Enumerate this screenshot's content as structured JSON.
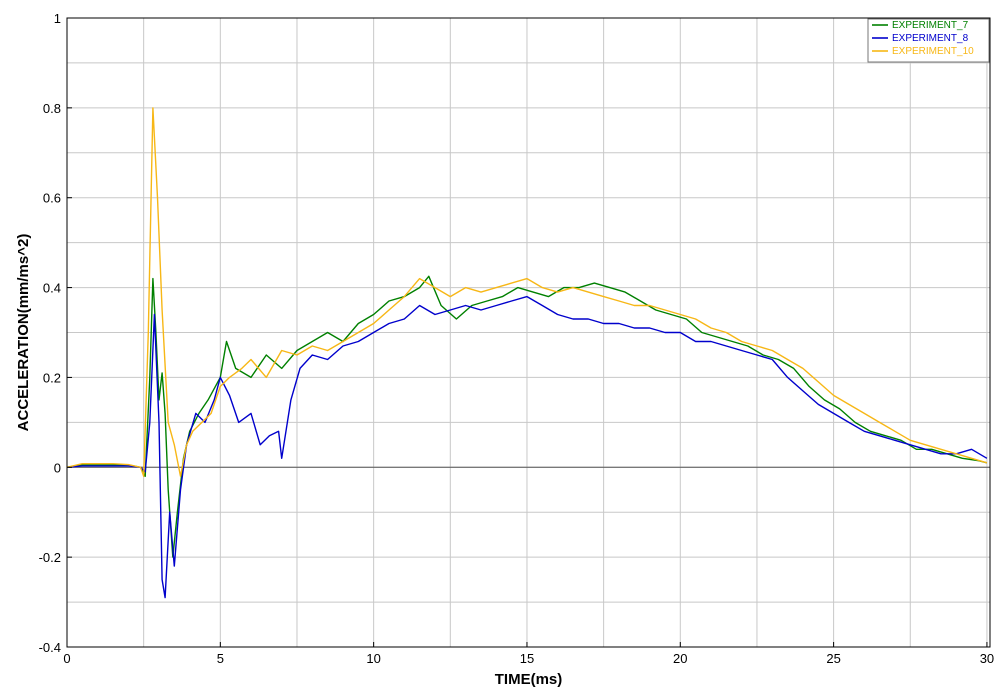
{
  "chart_data": {
    "type": "line",
    "title": "",
    "xlabel": "TIME(ms)",
    "ylabel": "ACCELERATION(mm/ms^2)",
    "xlim": [
      0,
      30.1
    ],
    "ylim": [
      -0.4,
      1.0
    ],
    "xticks": [
      "0",
      "5",
      "10",
      "15",
      "20",
      "25",
      "30"
    ],
    "yticks": [
      "-0.4",
      "-0.2",
      "0",
      "0.2",
      "0.4",
      "0.6",
      "0.8",
      "1"
    ],
    "grid": true,
    "legend_position": "top-right",
    "zero_line": true,
    "series": [
      {
        "name": "EXPERIMENT_7",
        "color": "#008000",
        "x": [
          0,
          0.5,
          1.0,
          1.5,
          2.0,
          2.4,
          2.55,
          2.7,
          2.8,
          2.9,
          3.0,
          3.1,
          3.2,
          3.3,
          3.45,
          3.6,
          3.8,
          4.0,
          4.3,
          4.6,
          5.0,
          5.2,
          5.5,
          6.0,
          6.5,
          7.0,
          7.5,
          8.0,
          8.5,
          9.0,
          9.5,
          10.0,
          10.5,
          11.0,
          11.5,
          11.8,
          12.2,
          12.7,
          13.2,
          13.7,
          14.2,
          14.7,
          15.2,
          15.7,
          16.2,
          16.7,
          17.2,
          17.7,
          18.2,
          18.7,
          19.2,
          19.7,
          20.2,
          20.7,
          21.2,
          21.7,
          22.2,
          22.7,
          23.2,
          23.7,
          24.2,
          24.7,
          25.2,
          25.7,
          26.2,
          26.7,
          27.2,
          27.7,
          28.2,
          28.7,
          29.2,
          29.7,
          30.0
        ],
        "y": [
          0,
          0.005,
          0.005,
          0.005,
          0.005,
          0.0,
          -0.02,
          0.2,
          0.42,
          0.3,
          0.15,
          0.21,
          0.12,
          -0.05,
          -0.2,
          -0.1,
          0.02,
          0.08,
          0.12,
          0.15,
          0.2,
          0.28,
          0.22,
          0.2,
          0.25,
          0.22,
          0.26,
          0.28,
          0.3,
          0.28,
          0.32,
          0.34,
          0.37,
          0.38,
          0.4,
          0.425,
          0.36,
          0.33,
          0.36,
          0.37,
          0.38,
          0.4,
          0.39,
          0.38,
          0.4,
          0.4,
          0.41,
          0.4,
          0.39,
          0.37,
          0.35,
          0.34,
          0.33,
          0.3,
          0.29,
          0.28,
          0.27,
          0.25,
          0.24,
          0.22,
          0.18,
          0.15,
          0.13,
          0.1,
          0.08,
          0.07,
          0.06,
          0.04,
          0.04,
          0.03,
          0.02,
          0.015,
          0.01
        ]
      },
      {
        "name": "EXPERIMENT_8",
        "color": "#0000cc",
        "x": [
          0,
          0.5,
          1.0,
          1.5,
          2.0,
          2.4,
          2.55,
          2.7,
          2.85,
          3.0,
          3.1,
          3.2,
          3.35,
          3.5,
          3.7,
          3.9,
          4.2,
          4.5,
          4.8,
          5.0,
          5.3,
          5.6,
          6.0,
          6.3,
          6.6,
          6.9,
          7.0,
          7.3,
          7.6,
          8.0,
          8.5,
          9.0,
          9.5,
          10.0,
          10.5,
          11.0,
          11.5,
          12.0,
          12.5,
          13.0,
          13.5,
          14.0,
          14.5,
          15.0,
          15.5,
          16.0,
          16.5,
          17.0,
          17.5,
          18.0,
          18.5,
          19.0,
          19.5,
          20.0,
          20.5,
          21.0,
          21.5,
          22.0,
          22.5,
          23.0,
          23.5,
          24.0,
          24.5,
          25.0,
          25.5,
          26.0,
          26.5,
          27.0,
          27.5,
          28.0,
          28.5,
          29.0,
          29.5,
          30.0
        ],
        "y": [
          0,
          0.003,
          0.003,
          0.003,
          0.003,
          0.0,
          -0.01,
          0.1,
          0.34,
          0.1,
          -0.25,
          -0.29,
          -0.1,
          -0.22,
          -0.05,
          0.05,
          0.12,
          0.1,
          0.15,
          0.2,
          0.16,
          0.1,
          0.12,
          0.05,
          0.07,
          0.08,
          0.02,
          0.15,
          0.22,
          0.25,
          0.24,
          0.27,
          0.28,
          0.3,
          0.32,
          0.33,
          0.36,
          0.34,
          0.35,
          0.36,
          0.35,
          0.36,
          0.37,
          0.38,
          0.36,
          0.34,
          0.33,
          0.33,
          0.32,
          0.32,
          0.31,
          0.31,
          0.3,
          0.3,
          0.28,
          0.28,
          0.27,
          0.26,
          0.25,
          0.24,
          0.2,
          0.17,
          0.14,
          0.12,
          0.1,
          0.08,
          0.07,
          0.06,
          0.05,
          0.04,
          0.03,
          0.03,
          0.04,
          0.02
        ]
      },
      {
        "name": "EXPERIMENT_10",
        "color": "#f7b716",
        "x": [
          0,
          0.5,
          1.0,
          1.5,
          2.0,
          2.4,
          2.5,
          2.65,
          2.8,
          2.95,
          3.1,
          3.3,
          3.5,
          3.7,
          3.9,
          4.1,
          4.4,
          4.7,
          5.0,
          5.3,
          5.7,
          6.0,
          6.5,
          7.0,
          7.5,
          8.0,
          8.5,
          9.0,
          9.5,
          10.0,
          10.5,
          11.0,
          11.5,
          12.0,
          12.5,
          13.0,
          13.5,
          14.0,
          14.5,
          15.0,
          15.5,
          16.0,
          16.5,
          17.0,
          17.5,
          18.0,
          18.5,
          19.0,
          19.5,
          20.0,
          20.5,
          21.0,
          21.5,
          22.0,
          22.5,
          23.0,
          23.5,
          24.0,
          24.5,
          25.0,
          25.5,
          26.0,
          26.5,
          27.0,
          27.5,
          28.0,
          28.5,
          29.0,
          29.5,
          30.0
        ],
        "y": [
          0,
          0.008,
          0.008,
          0.008,
          0.006,
          0.0,
          -0.02,
          0.3,
          0.8,
          0.6,
          0.35,
          0.1,
          0.05,
          -0.02,
          0.05,
          0.08,
          0.1,
          0.12,
          0.18,
          0.2,
          0.22,
          0.24,
          0.2,
          0.26,
          0.25,
          0.27,
          0.26,
          0.28,
          0.3,
          0.32,
          0.35,
          0.38,
          0.42,
          0.4,
          0.38,
          0.4,
          0.39,
          0.4,
          0.41,
          0.42,
          0.4,
          0.39,
          0.4,
          0.39,
          0.38,
          0.37,
          0.36,
          0.36,
          0.35,
          0.34,
          0.33,
          0.31,
          0.3,
          0.28,
          0.27,
          0.26,
          0.24,
          0.22,
          0.19,
          0.16,
          0.14,
          0.12,
          0.1,
          0.08,
          0.06,
          0.05,
          0.04,
          0.03,
          0.02,
          0.01
        ]
      }
    ]
  }
}
